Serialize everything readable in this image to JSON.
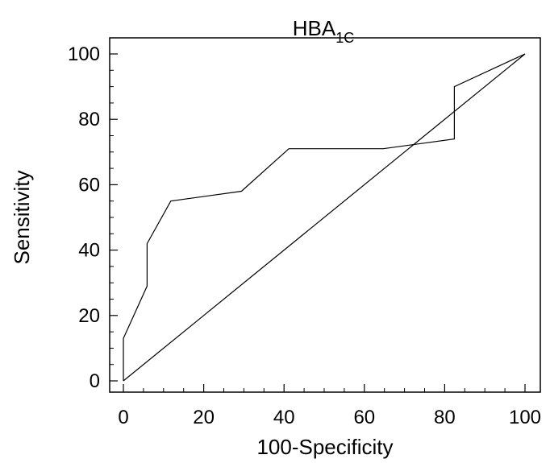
{
  "chart_data": {
    "type": "line",
    "title": "HBA",
    "title_subscript": "1C",
    "xlabel": "100-Specificity",
    "ylabel": "Sensitivity",
    "xlim": [
      0,
      100
    ],
    "ylim": [
      0,
      100
    ],
    "x_ticks": [
      0,
      20,
      40,
      60,
      80,
      100
    ],
    "y_ticks": [
      0,
      20,
      40,
      60,
      80,
      100
    ],
    "x_tick_labels": [
      "0",
      "20",
      "40",
      "60",
      "80",
      "100"
    ],
    "y_tick_labels": [
      "0",
      "20",
      "40",
      "60",
      "80",
      "100"
    ],
    "x_minor_step": 5,
    "y_minor_step": 5,
    "grid": false,
    "legend": "none",
    "series": [
      {
        "role": "roc-curve",
        "color": "#000000",
        "points": [
          [
            0,
            0
          ],
          [
            0,
            13
          ],
          [
            5.9,
            29
          ],
          [
            5.9,
            42
          ],
          [
            11.8,
            55
          ],
          [
            29.4,
            58
          ],
          [
            41.2,
            71
          ],
          [
            64.7,
            71
          ],
          [
            82.4,
            74
          ],
          [
            82.4,
            90
          ],
          [
            100,
            100
          ]
        ]
      },
      {
        "role": "reference-diagonal",
        "color": "#000000",
        "points": [
          [
            0,
            0
          ],
          [
            100,
            100
          ]
        ]
      }
    ]
  }
}
